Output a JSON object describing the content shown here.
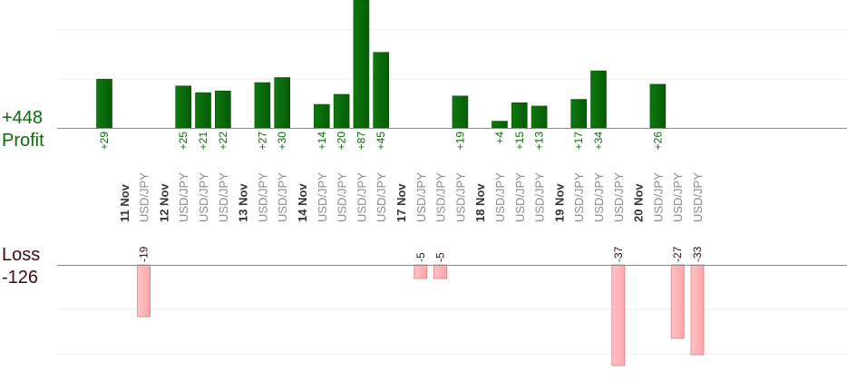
{
  "summary": {
    "profit_total": "+448",
    "profit_label": "Profit",
    "loss_label": "Loss",
    "loss_total": "-126"
  },
  "colors": {
    "profit_bar": "#0a6b0a",
    "profit_text": "#0a6b0a",
    "loss_bar": "#ffb3b6",
    "loss_text": "#3a0c0c",
    "date_text": "#333333",
    "symbol_text": "#8a8a8a",
    "grid": "#eeeeee",
    "axis": "#888888"
  },
  "chart_data": {
    "type": "bar",
    "columns": [
      {
        "kind": "trade",
        "label": "",
        "value": 29
      },
      {
        "kind": "date",
        "label": "11 Nov"
      },
      {
        "kind": "trade",
        "label": "USD/JPY",
        "value": -19
      },
      {
        "kind": "date",
        "label": "12 Nov"
      },
      {
        "kind": "trade",
        "label": "USD/JPY",
        "value": 25
      },
      {
        "kind": "trade",
        "label": "USD/JPY",
        "value": 21
      },
      {
        "kind": "trade",
        "label": "USD/JPY",
        "value": 22
      },
      {
        "kind": "date",
        "label": "13 Nov"
      },
      {
        "kind": "trade",
        "label": "USD/JPY",
        "value": 27
      },
      {
        "kind": "trade",
        "label": "USD/JPY",
        "value": 30
      },
      {
        "kind": "date",
        "label": "14 Nov"
      },
      {
        "kind": "trade",
        "label": "USD/JPY",
        "value": 14
      },
      {
        "kind": "trade",
        "label": "USD/JPY",
        "value": 20
      },
      {
        "kind": "trade",
        "label": "USD/JPY",
        "value": 87
      },
      {
        "kind": "trade",
        "label": "USD/JPY",
        "value": 45
      },
      {
        "kind": "date",
        "label": "17 Nov"
      },
      {
        "kind": "trade",
        "label": "USD/JPY",
        "value": -5
      },
      {
        "kind": "trade",
        "label": "USD/JPY",
        "value": -5
      },
      {
        "kind": "trade",
        "label": "USD/JPY",
        "value": 19
      },
      {
        "kind": "date",
        "label": "18 Nov"
      },
      {
        "kind": "trade",
        "label": "USD/JPY",
        "value": 4
      },
      {
        "kind": "trade",
        "label": "USD/JPY",
        "value": 15
      },
      {
        "kind": "trade",
        "label": "USD/JPY",
        "value": 13
      },
      {
        "kind": "date",
        "label": "19 Nov"
      },
      {
        "kind": "trade",
        "label": "USD/JPY",
        "value": 17
      },
      {
        "kind": "trade",
        "label": "USD/JPY",
        "value": 34
      },
      {
        "kind": "trade",
        "label": "USD/JPY",
        "value": -37
      },
      {
        "kind": "date",
        "label": "20 Nov"
      },
      {
        "kind": "trade",
        "label": "USD/JPY",
        "value": 26
      },
      {
        "kind": "trade",
        "label": "USD/JPY",
        "value": -27
      },
      {
        "kind": "trade",
        "label": "USD/JPY",
        "value": -33
      }
    ]
  }
}
